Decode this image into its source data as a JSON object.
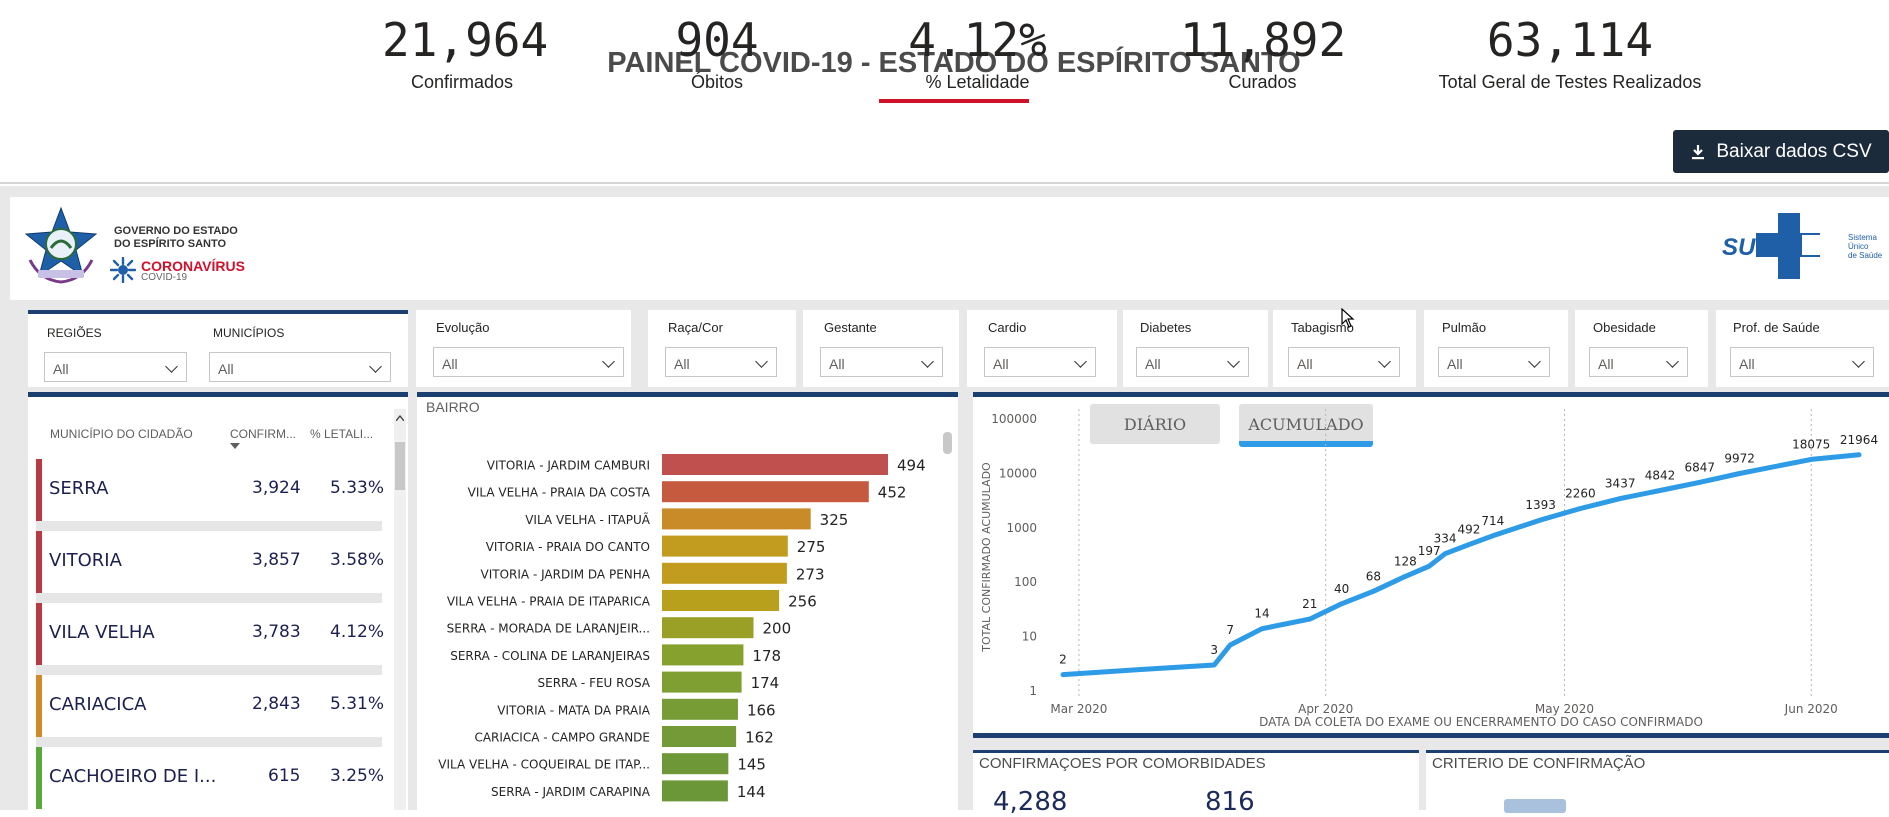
{
  "header": {
    "title": "PAINEL COVID-19 - ESTADO DO ESPÍRITO SANTO",
    "csv_button": "Baixar dados CSV"
  },
  "logo": {
    "gov_line1": "GOVERNO DO ESTADO",
    "gov_line2": "DO ESPÍRITO SANTO",
    "coronavirus": "CORONAVÍRUS",
    "covid": "COVID-19",
    "sus": "SUS",
    "sus_sub1": "Sistema",
    "sus_sub2": "Único",
    "sus_sub3": "de Saúde"
  },
  "kpis": [
    {
      "value": "21,964",
      "label": "Confirmados"
    },
    {
      "value": "904",
      "label": "Óbitos"
    },
    {
      "value": "4.12%",
      "label": "% Letalidade"
    },
    {
      "value": "11,892",
      "label": "Curados"
    },
    {
      "value": "63,114",
      "label": "Total Geral de Testes Realizados"
    }
  ],
  "filters": {
    "regioes": {
      "label": "REGIÕES",
      "value": "All"
    },
    "municipios": {
      "label": "MUNICÍPIOS",
      "value": "All"
    },
    "evolucao": {
      "label": "Evolução",
      "value": "All"
    },
    "raca": {
      "label": "Raça/Cor",
      "value": "All"
    },
    "gestante": {
      "label": "Gestante",
      "value": "All"
    },
    "cardio": {
      "label": "Cardio",
      "value": "All"
    },
    "diabetes": {
      "label": "Diabetes",
      "value": "All"
    },
    "tabagismo": {
      "label": "Tabagismo",
      "value": "All"
    },
    "pulmao": {
      "label": "Pulmão",
      "value": "All"
    },
    "obesidade": {
      "label": "Obesidade",
      "value": "All"
    },
    "prof_saude": {
      "label": "Prof. de Saúde",
      "value": "All"
    }
  },
  "municipios_table": {
    "headers": [
      "MUNICÍPIO DO CIDADÃO",
      "CONFIRM...",
      "% LETALI..."
    ],
    "rows": [
      {
        "name": "SERRA",
        "confirmados": "3,924",
        "letalidade": "5.33%",
        "color": "#b83b43"
      },
      {
        "name": "VITORIA",
        "confirmados": "3,857",
        "letalidade": "3.58%",
        "color": "#b83b43"
      },
      {
        "name": "VILA VELHA",
        "confirmados": "3,783",
        "letalidade": "4.12%",
        "color": "#b83b43"
      },
      {
        "name": "CARIACICA",
        "confirmados": "2,843",
        "letalidade": "5.31%",
        "color": "#d08a2a"
      },
      {
        "name": "CACHOEIRO DE I...",
        "confirmados": "615",
        "letalidade": "3.25%",
        "color": "#5aa83a"
      }
    ]
  },
  "bairro_chart": {
    "title": "BAIRRO",
    "categories": [
      "VITORIA - JARDIM CAMBURI",
      "VILA VELHA - PRAIA DA COSTA",
      "VILA VELHA - ITAPUÃ",
      "VITORIA - PRAIA DO CANTO",
      "VITORIA - JARDIM DA PENHA",
      "VILA VELHA - PRAIA DE ITAPARICA",
      "SERRA - MORADA DE LARANJEIR...",
      "SERRA - COLINA DE LARANJEIRAS",
      "SERRA - FEU ROSA",
      "VITORIA - MATA DA PRAIA",
      "CARIACICA - CAMPO GRANDE",
      "VILA VELHA - COQUEIRAL DE ITAP...",
      "SERRA - JARDIM CARAPINA"
    ],
    "values": [
      494,
      452,
      325,
      275,
      273,
      256,
      200,
      178,
      174,
      166,
      162,
      145,
      144
    ],
    "colors": [
      "#c0504d",
      "#c65a3e",
      "#c98a28",
      "#c29c1f",
      "#c29c1f",
      "#b9a01c",
      "#9a9f26",
      "#86a12e",
      "#7f9f32",
      "#779c35",
      "#739a37",
      "#6e9838",
      "#6b9739"
    ]
  },
  "chart_data": {
    "type": "line",
    "xlabel": "DATA DA COLETA DO EXAME OU ENCERRAMENTO DO CASO CONFIRMADO",
    "ylabel": "TOTAL CONFIRMADO ACUMULADO",
    "scale": "log",
    "ylim": [
      1,
      100000
    ],
    "y_ticks": [
      "1",
      "10",
      "100",
      "1000",
      "10000",
      "100000"
    ],
    "x_ticks": [
      "Mar 2020",
      "Apr 2020",
      "May 2020",
      "Jun 2020"
    ],
    "tabs": [
      "DIÁRIO",
      "ACUMULADO"
    ],
    "active_tab": "ACUMULADO",
    "series_color": "#2e9be6",
    "points": [
      {
        "date": "2020-02-28",
        "y": 2,
        "label": "2"
      },
      {
        "date": "2020-03-09",
        "y": 2.5
      },
      {
        "date": "2020-03-18",
        "y": 3,
        "label": "3"
      },
      {
        "date": "2020-03-20",
        "y": 7,
        "label": "7"
      },
      {
        "date": "2020-03-24",
        "y": 14,
        "label": "14"
      },
      {
        "date": "2020-03-30",
        "y": 21,
        "label": "21"
      },
      {
        "date": "2020-04-03",
        "y": 40,
        "label": "40"
      },
      {
        "date": "2020-04-07",
        "y": 68,
        "label": "68"
      },
      {
        "date": "2020-04-11",
        "y": 128,
        "label": "128"
      },
      {
        "date": "2020-04-14",
        "y": 197,
        "label": "197"
      },
      {
        "date": "2020-04-16",
        "y": 334,
        "label": "334"
      },
      {
        "date": "2020-04-19",
        "y": 492,
        "label": "492"
      },
      {
        "date": "2020-04-22",
        "y": 714,
        "label": "714"
      },
      {
        "date": "2020-04-28",
        "y": 1393,
        "label": "1393"
      },
      {
        "date": "2020-05-03",
        "y": 2260,
        "label": "2260"
      },
      {
        "date": "2020-05-08",
        "y": 3437,
        "label": "3437"
      },
      {
        "date": "2020-05-13",
        "y": 4842,
        "label": "4842"
      },
      {
        "date": "2020-05-18",
        "y": 6847,
        "label": "6847"
      },
      {
        "date": "2020-05-23",
        "y": 9972,
        "label": "9972"
      },
      {
        "date": "2020-06-01",
        "y": 18075,
        "label": "18075"
      },
      {
        "date": "2020-06-07",
        "y": 21964,
        "label": "21964"
      }
    ]
  },
  "bottom_panels": {
    "comorbidades_title": "CONFIRMAÇOES POR COMORBIDADES",
    "comorbidades_v1": "4,288",
    "comorbidades_v2": "816",
    "criterio_title": "CRITERIO DE CONFIRMAÇÃO"
  }
}
